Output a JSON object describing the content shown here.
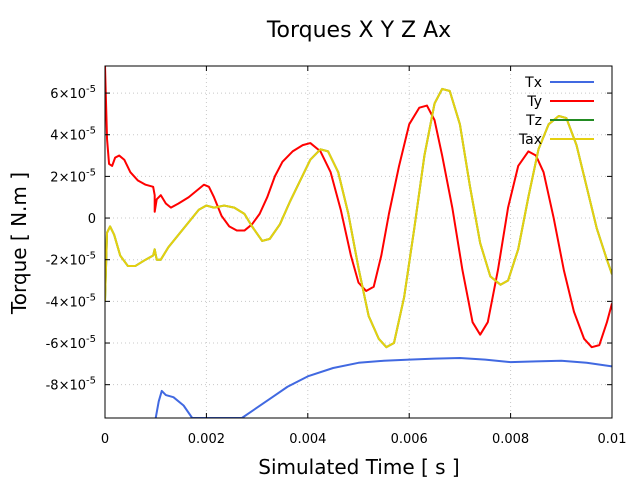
{
  "chart_data": {
    "type": "line",
    "title": "Torques X Y Z Ax",
    "xlabel": "Simulated Time [ s ]",
    "ylabel": "Torque [ N.m ]",
    "xlim": [
      0,
      0.01
    ],
    "ylim": [
      -9.6e-05,
      7.3e-05
    ],
    "grid": true,
    "legend_position": "top-right",
    "x_ticks": [
      {
        "value": 0,
        "label": "0"
      },
      {
        "value": 0.002,
        "label": "0.002"
      },
      {
        "value": 0.004,
        "label": "0.004"
      },
      {
        "value": 0.006,
        "label": "0.006"
      },
      {
        "value": 0.008,
        "label": "0.008"
      },
      {
        "value": 0.01,
        "label": "0.01"
      }
    ],
    "y_ticks": [
      {
        "value": 6e-05,
        "mant": "6",
        "exp": "-5"
      },
      {
        "value": 4e-05,
        "mant": "4",
        "exp": "-5"
      },
      {
        "value": 2e-05,
        "mant": "2",
        "exp": "-5"
      },
      {
        "value": 0,
        "mant": "0",
        "exp": ""
      },
      {
        "value": -2e-05,
        "mant": "-2",
        "exp": "-5"
      },
      {
        "value": -4e-05,
        "mant": "-4",
        "exp": "-5"
      },
      {
        "value": -6e-05,
        "mant": "-6",
        "exp": "-5"
      },
      {
        "value": -8e-05,
        "mant": "-8",
        "exp": "-5"
      }
    ],
    "series": [
      {
        "name": "Tx",
        "color": "#4169e1",
        "points": [
          [
            0.001,
            -9.6e-05
          ],
          [
            0.00106,
            -8.8e-05
          ],
          [
            0.00112,
            -8.3e-05
          ],
          [
            0.0012,
            -8.5e-05
          ],
          [
            0.00135,
            -8.6e-05
          ],
          [
            0.00155,
            -9e-05
          ],
          [
            0.00172,
            -9.6e-05
          ],
          [
            0.0027,
            -9.6e-05
          ],
          [
            0.003,
            -9.1e-05
          ],
          [
            0.0033,
            -8.6e-05
          ],
          [
            0.0036,
            -8.1e-05
          ],
          [
            0.004,
            -7.6e-05
          ],
          [
            0.0045,
            -7.2e-05
          ],
          [
            0.005,
            -6.95e-05
          ],
          [
            0.0055,
            -6.85e-05
          ],
          [
            0.006,
            -6.8e-05
          ],
          [
            0.0065,
            -6.75e-05
          ],
          [
            0.007,
            -6.72e-05
          ],
          [
            0.0075,
            -6.8e-05
          ],
          [
            0.008,
            -6.92e-05
          ],
          [
            0.0085,
            -6.88e-05
          ],
          [
            0.009,
            -6.85e-05
          ],
          [
            0.0095,
            -6.95e-05
          ],
          [
            0.01,
            -7.12e-05
          ]
        ]
      },
      {
        "name": "Ty",
        "color": "#ff0000",
        "points": [
          [
            0.0,
            7.3e-05
          ],
          [
            4e-05,
            3.8e-05
          ],
          [
            8e-05,
            2.6e-05
          ],
          [
            0.00014,
            2.5e-05
          ],
          [
            0.0002,
            2.9e-05
          ],
          [
            0.00028,
            3e-05
          ],
          [
            0.00038,
            2.8e-05
          ],
          [
            0.0005,
            2.2e-05
          ],
          [
            0.00065,
            1.8e-05
          ],
          [
            0.0008,
            1.6e-05
          ],
          [
            0.00095,
            1.5e-05
          ],
          [
            0.00098,
            1.1e-05
          ],
          [
            0.00098,
            3e-06
          ],
          [
            0.00102,
            9e-06
          ],
          [
            0.0011,
            1.1e-05
          ],
          [
            0.0012,
            7e-06
          ],
          [
            0.0013,
            5e-06
          ],
          [
            0.00145,
            7e-06
          ],
          [
            0.00165,
            1e-05
          ],
          [
            0.0018,
            1.3e-05
          ],
          [
            0.00195,
            1.6e-05
          ],
          [
            0.00205,
            1.5e-05
          ],
          [
            0.00215,
            1e-05
          ],
          [
            0.0023,
            1e-06
          ],
          [
            0.00245,
            -4e-06
          ],
          [
            0.0026,
            -6e-06
          ],
          [
            0.00275,
            -6e-06
          ],
          [
            0.0029,
            -3e-06
          ],
          [
            0.00305,
            2e-06
          ],
          [
            0.0032,
            1e-05
          ],
          [
            0.00335,
            2e-05
          ],
          [
            0.0035,
            2.7e-05
          ],
          [
            0.0037,
            3.2e-05
          ],
          [
            0.0039,
            3.5e-05
          ],
          [
            0.00405,
            3.6e-05
          ],
          [
            0.00425,
            3.2e-05
          ],
          [
            0.00445,
            2.2e-05
          ],
          [
            0.00465,
            4e-06
          ],
          [
            0.00485,
            -1.8e-05
          ],
          [
            0.005,
            -3.1e-05
          ],
          [
            0.00515,
            -3.5e-05
          ],
          [
            0.0053,
            -3.3e-05
          ],
          [
            0.00545,
            -1.8e-05
          ],
          [
            0.0056,
            2e-06
          ],
          [
            0.0058,
            2.5e-05
          ],
          [
            0.006,
            4.5e-05
          ],
          [
            0.0062,
            5.3e-05
          ],
          [
            0.00635,
            5.4e-05
          ],
          [
            0.0065,
            4.7e-05
          ],
          [
            0.00665,
            3e-05
          ],
          [
            0.00685,
            5e-06
          ],
          [
            0.00705,
            -2.5e-05
          ],
          [
            0.00725,
            -5e-05
          ],
          [
            0.0074,
            -5.6e-05
          ],
          [
            0.00755,
            -5e-05
          ],
          [
            0.00775,
            -2.5e-05
          ],
          [
            0.00795,
            5e-06
          ],
          [
            0.00815,
            2.5e-05
          ],
          [
            0.00835,
            3.2e-05
          ],
          [
            0.0085,
            3e-05
          ],
          [
            0.00865,
            2.2e-05
          ],
          [
            0.00885,
            0.0
          ],
          [
            0.00905,
            -2.5e-05
          ],
          [
            0.00925,
            -4.5e-05
          ],
          [
            0.00945,
            -5.8e-05
          ],
          [
            0.0096,
            -6.2e-05
          ],
          [
            0.00975,
            -6.1e-05
          ],
          [
            0.0099,
            -5e-05
          ],
          [
            0.01,
            -4.1e-05
          ]
        ]
      },
      {
        "name": "Tz",
        "color": "#228b22",
        "points": [
          [
            0.0,
            -4e-05
          ],
          [
            4e-05,
            -7e-06
          ],
          [
            0.0001,
            -4e-06
          ],
          [
            0.00018,
            -8e-06
          ],
          [
            0.0003,
            -1.8e-05
          ],
          [
            0.00045,
            -2.3e-05
          ],
          [
            0.0006,
            -2.3e-05
          ],
          [
            0.0008,
            -2e-05
          ],
          [
            0.00095,
            -1.8e-05
          ],
          [
            0.00098,
            -1.5e-05
          ],
          [
            0.00102,
            -2e-05
          ],
          [
            0.0011,
            -2e-05
          ],
          [
            0.00125,
            -1.4e-05
          ],
          [
            0.00145,
            -8e-06
          ],
          [
            0.00165,
            -2e-06
          ],
          [
            0.00185,
            4e-06
          ],
          [
            0.002,
            6e-06
          ],
          [
            0.00215,
            5e-06
          ],
          [
            0.00235,
            6e-06
          ],
          [
            0.00255,
            5e-06
          ],
          [
            0.00275,
            2e-06
          ],
          [
            0.0029,
            -4e-06
          ],
          [
            0.0031,
            -1.1e-05
          ],
          [
            0.00325,
            -1e-05
          ],
          [
            0.00345,
            -3e-06
          ],
          [
            0.00365,
            8e-06
          ],
          [
            0.00385,
            1.8e-05
          ],
          [
            0.00405,
            2.8e-05
          ],
          [
            0.00425,
            3.3e-05
          ],
          [
            0.0044,
            3.2e-05
          ],
          [
            0.0046,
            2.2e-05
          ],
          [
            0.0048,
            2e-06
          ],
          [
            0.005,
            -2.4e-05
          ],
          [
            0.0052,
            -4.7e-05
          ],
          [
            0.0054,
            -5.8e-05
          ],
          [
            0.00555,
            -6.2e-05
          ],
          [
            0.0057,
            -6e-05
          ],
          [
            0.0059,
            -3.8e-05
          ],
          [
            0.0061,
            -5e-06
          ],
          [
            0.0063,
            3e-05
          ],
          [
            0.0065,
            5.5e-05
          ],
          [
            0.00665,
            6.2e-05
          ],
          [
            0.0068,
            6.1e-05
          ],
          [
            0.007,
            4.5e-05
          ],
          [
            0.0072,
            1.5e-05
          ],
          [
            0.0074,
            -1.2e-05
          ],
          [
            0.0076,
            -2.8e-05
          ],
          [
            0.0078,
            -3.2e-05
          ],
          [
            0.00795,
            -3e-05
          ],
          [
            0.00815,
            -1.5e-05
          ],
          [
            0.00835,
            1e-05
          ],
          [
            0.00855,
            3.3e-05
          ],
          [
            0.00875,
            4.5e-05
          ],
          [
            0.00895,
            4.9e-05
          ],
          [
            0.0091,
            4.8e-05
          ],
          [
            0.0093,
            3.5e-05
          ],
          [
            0.0095,
            1.5e-05
          ],
          [
            0.0097,
            -5e-06
          ],
          [
            0.0099,
            -2e-05
          ],
          [
            0.01,
            -2.7e-05
          ]
        ]
      },
      {
        "name": "Tax",
        "color": "#e5d010",
        "points": [
          [
            0.0,
            -4e-05
          ],
          [
            4e-05,
            -7e-06
          ],
          [
            0.0001,
            -4e-06
          ],
          [
            0.00018,
            -8e-06
          ],
          [
            0.0003,
            -1.8e-05
          ],
          [
            0.00045,
            -2.3e-05
          ],
          [
            0.0006,
            -2.3e-05
          ],
          [
            0.0008,
            -2e-05
          ],
          [
            0.00095,
            -1.8e-05
          ],
          [
            0.00098,
            -1.5e-05
          ],
          [
            0.00102,
            -2e-05
          ],
          [
            0.0011,
            -2e-05
          ],
          [
            0.00125,
            -1.4e-05
          ],
          [
            0.00145,
            -8e-06
          ],
          [
            0.00165,
            -2e-06
          ],
          [
            0.00185,
            4e-06
          ],
          [
            0.002,
            6e-06
          ],
          [
            0.00215,
            5e-06
          ],
          [
            0.00235,
            6e-06
          ],
          [
            0.00255,
            5e-06
          ],
          [
            0.00275,
            2e-06
          ],
          [
            0.0029,
            -4e-06
          ],
          [
            0.0031,
            -1.1e-05
          ],
          [
            0.00325,
            -1e-05
          ],
          [
            0.00345,
            -3e-06
          ],
          [
            0.00365,
            8e-06
          ],
          [
            0.00385,
            1.8e-05
          ],
          [
            0.00405,
            2.8e-05
          ],
          [
            0.00425,
            3.3e-05
          ],
          [
            0.0044,
            3.2e-05
          ],
          [
            0.0046,
            2.2e-05
          ],
          [
            0.0048,
            2e-06
          ],
          [
            0.005,
            -2.4e-05
          ],
          [
            0.0052,
            -4.7e-05
          ],
          [
            0.0054,
            -5.8e-05
          ],
          [
            0.00555,
            -6.2e-05
          ],
          [
            0.0057,
            -6e-05
          ],
          [
            0.0059,
            -3.8e-05
          ],
          [
            0.0061,
            -5e-06
          ],
          [
            0.0063,
            3e-05
          ],
          [
            0.0065,
            5.5e-05
          ],
          [
            0.00665,
            6.2e-05
          ],
          [
            0.0068,
            6.1e-05
          ],
          [
            0.007,
            4.5e-05
          ],
          [
            0.0072,
            1.5e-05
          ],
          [
            0.0074,
            -1.2e-05
          ],
          [
            0.0076,
            -2.8e-05
          ],
          [
            0.0078,
            -3.2e-05
          ],
          [
            0.00795,
            -3e-05
          ],
          [
            0.00815,
            -1.5e-05
          ],
          [
            0.00835,
            1e-05
          ],
          [
            0.00855,
            3.3e-05
          ],
          [
            0.00875,
            4.5e-05
          ],
          [
            0.00895,
            4.9e-05
          ],
          [
            0.0091,
            4.8e-05
          ],
          [
            0.0093,
            3.5e-05
          ],
          [
            0.0095,
            1.5e-05
          ],
          [
            0.0097,
            -5e-06
          ],
          [
            0.0099,
            -2e-05
          ],
          [
            0.01,
            -2.7e-05
          ]
        ]
      }
    ]
  }
}
